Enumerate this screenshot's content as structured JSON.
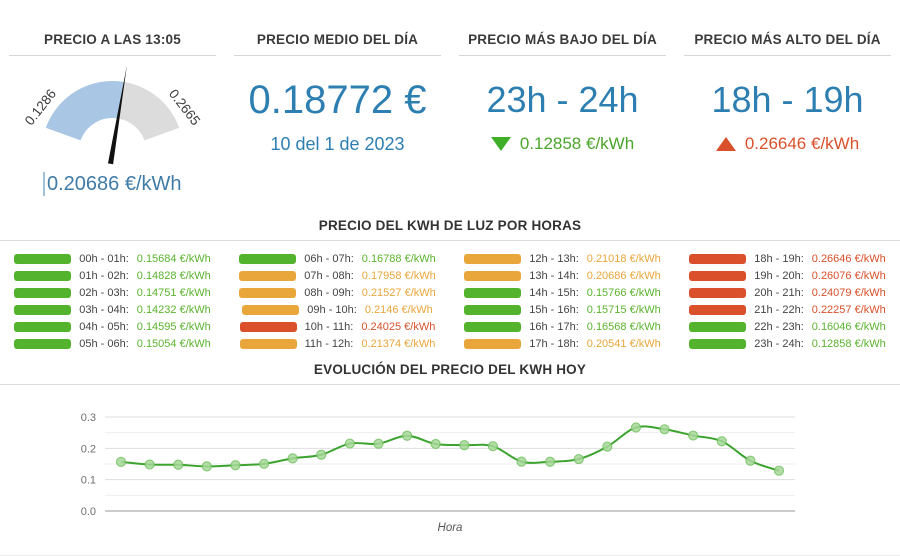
{
  "panels": {
    "current": {
      "title": "PRECIO A LAS 13:05",
      "min_label": "0.1286",
      "max_label": "0.2665",
      "min": 0.1286,
      "max": 0.2665,
      "value": 0.20686,
      "value_label": "0.20686 €/kWh"
    },
    "average": {
      "title": "PRECIO MEDIO DEL DÍA",
      "value": "0.18772 €",
      "date": "10 del 1 de 2023"
    },
    "lowest": {
      "title": "PRECIO MÁS BAJO DEL DÍA",
      "range": "23h - 24h",
      "price": "0.12858 €/kWh"
    },
    "highest": {
      "title": "PRECIO MÁS ALTO DEL DÍA",
      "range": "18h - 19h",
      "price": "0.26646 €/kWh"
    }
  },
  "hourly_section": {
    "title": "PRECIO DEL KWH DE LUZ POR HORAS",
    "unit": "€/kWh",
    "rows": [
      {
        "range": "00h - 01h:",
        "price": "0.15684",
        "level": "green"
      },
      {
        "range": "01h - 02h:",
        "price": "0.14828",
        "level": "green"
      },
      {
        "range": "02h - 03h:",
        "price": "0.14751",
        "level": "green"
      },
      {
        "range": "03h - 04h:",
        "price": "0.14232",
        "level": "green"
      },
      {
        "range": "04h - 05h:",
        "price": "0.14595",
        "level": "green"
      },
      {
        "range": "05h - 06h:",
        "price": "0.15054",
        "level": "green"
      },
      {
        "range": "06h - 07h:",
        "price": "0.16788",
        "level": "green"
      },
      {
        "range": "07h - 08h:",
        "price": "0.17958",
        "level": "orange"
      },
      {
        "range": "08h - 09h:",
        "price": "0.21527",
        "level": "orange"
      },
      {
        "range": "09h - 10h:",
        "price": "0.2146",
        "level": "orange"
      },
      {
        "range": "10h - 11h:",
        "price": "0.24025",
        "level": "red"
      },
      {
        "range": "11h - 12h:",
        "price": "0.21374",
        "level": "orange"
      },
      {
        "range": "12h - 13h:",
        "price": "0.21018",
        "level": "orange"
      },
      {
        "range": "13h - 14h:",
        "price": "0.20686",
        "level": "orange"
      },
      {
        "range": "14h - 15h:",
        "price": "0.15766",
        "level": "green"
      },
      {
        "range": "15h - 16h:",
        "price": "0.15715",
        "level": "green"
      },
      {
        "range": "16h - 17h:",
        "price": "0.16568",
        "level": "green"
      },
      {
        "range": "17h - 18h:",
        "price": "0.20541",
        "level": "orange"
      },
      {
        "range": "18h - 19h:",
        "price": "0.26646",
        "level": "red"
      },
      {
        "range": "19h - 20h:",
        "price": "0.26076",
        "level": "red"
      },
      {
        "range": "20h - 21h:",
        "price": "0.24079",
        "level": "red"
      },
      {
        "range": "21h - 22h:",
        "price": "0.22257",
        "level": "red"
      },
      {
        "range": "22h - 23h:",
        "price": "0.16046",
        "level": "green"
      },
      {
        "range": "23h - 24h:",
        "price": "0.12858",
        "level": "green"
      }
    ]
  },
  "evolution_section": {
    "title": "EVOLUCIÓN DEL PRECIO DEL KWH HOY"
  },
  "chart_data": {
    "type": "line",
    "title": "EVOLUCIÓN DEL PRECIO DEL KWH HOY",
    "x": [
      0,
      1,
      2,
      3,
      4,
      5,
      6,
      7,
      8,
      9,
      10,
      11,
      12,
      13,
      14,
      15,
      16,
      17,
      18,
      19,
      20,
      21,
      22,
      23
    ],
    "values": [
      0.15684,
      0.14828,
      0.14751,
      0.14232,
      0.14595,
      0.15054,
      0.16788,
      0.17958,
      0.21527,
      0.2146,
      0.24025,
      0.21374,
      0.21018,
      0.20686,
      0.15766,
      0.15715,
      0.16568,
      0.20541,
      0.26646,
      0.26076,
      0.24079,
      0.22257,
      0.16046,
      0.12858
    ],
    "xlabel": "Hora",
    "ylabel": "",
    "ylim": [
      0,
      0.3
    ],
    "yticks": [
      "0.0",
      "0.1",
      "0.2",
      "0.3"
    ],
    "minor_yticks": [
      0.05,
      0.15,
      0.25
    ],
    "grid": true,
    "legend": false,
    "line_color": "#3ca32f",
    "marker_fill": "#a6d998",
    "marker_stroke": "#74c163"
  },
  "colors": {
    "accent_blue": "#2d7fb2",
    "green": "#54b32d",
    "orange": "#e9a63b",
    "red": "#d9502a",
    "gauge_blue": "#a9c6e4",
    "gauge_gray": "#dcdcdc",
    "needle_black": "#111111"
  }
}
